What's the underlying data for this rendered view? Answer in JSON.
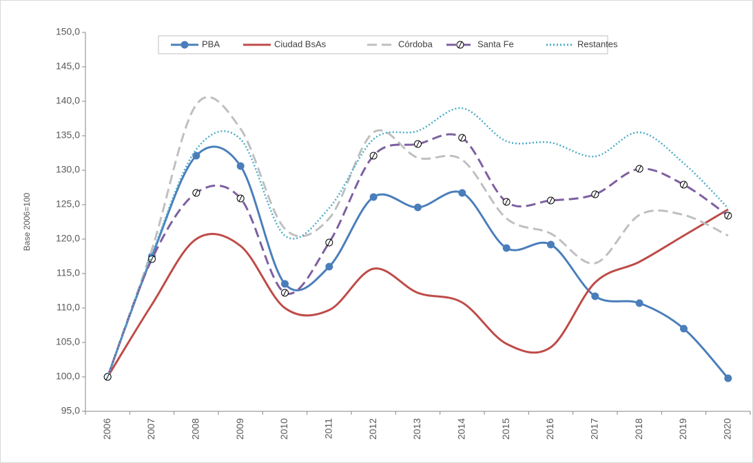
{
  "chart_data": {
    "type": "line",
    "y_label": "Base 2006=100",
    "categories": [
      "2006",
      "2007",
      "2008",
      "2009",
      "2010",
      "2011",
      "2012",
      "2013",
      "2014",
      "2015",
      "2016",
      "2017",
      "2018",
      "2019",
      "2020"
    ],
    "ylim": [
      95,
      150
    ],
    "yticks": [
      {
        "value": 95,
        "label": "95,0"
      },
      {
        "value": 100,
        "label": "100,0"
      },
      {
        "value": 105,
        "label": "105,0"
      },
      {
        "value": 110,
        "label": "110,0"
      },
      {
        "value": 115,
        "label": "115,0"
      },
      {
        "value": 120,
        "label": "120,0"
      },
      {
        "value": 125,
        "label": "125,0"
      },
      {
        "value": 130,
        "label": "130,0"
      },
      {
        "value": 135,
        "label": "135,0"
      },
      {
        "value": 140,
        "label": "140,0"
      },
      {
        "value": 145,
        "label": "145,0"
      },
      {
        "value": 150,
        "label": "150,0"
      }
    ],
    "smooth": true,
    "series": [
      {
        "name": "PBA",
        "color": "#4a7ebb",
        "line_style": "solid",
        "marker": "circle",
        "values": [
          100,
          117.5,
          132.1,
          130.6,
          113.5,
          116.0,
          126.1,
          124.6,
          126.7,
          118.7,
          119.2,
          111.7,
          110.7,
          107.0,
          99.8
        ]
      },
      {
        "name": "Ciudad BsAs",
        "color": "#be4b48",
        "line_style": "solid",
        "marker": null,
        "values": [
          100,
          110.5,
          120.0,
          119.0,
          110.0,
          109.7,
          115.7,
          112.2,
          110.8,
          104.8,
          104.3,
          113.7,
          116.7,
          120.5,
          124.3
        ]
      },
      {
        "name": "Córdoba",
        "color": "#bfbfbf",
        "line_style": "dashed",
        "marker": null,
        "values": [
          100,
          118.5,
          139.5,
          136.0,
          121.5,
          123.0,
          135.5,
          131.8,
          131.5,
          123.0,
          120.8,
          116.5,
          123.5,
          123.5,
          120.5
        ]
      },
      {
        "name": "Santa Fe",
        "color": "#7d5fa0",
        "line_style": "dashed",
        "marker": "open-circle",
        "values": [
          100,
          117.1,
          126.7,
          125.9,
          112.2,
          119.5,
          132.1,
          133.8,
          134.7,
          125.4,
          125.6,
          126.5,
          130.2,
          127.9,
          123.4
        ]
      },
      {
        "name": "Restantes",
        "color": "#4bacc6",
        "line_style": "dotted",
        "marker": null,
        "values": [
          100,
          117.8,
          133.0,
          134.5,
          120.5,
          124.5,
          134.5,
          135.7,
          139.0,
          134.2,
          134.0,
          132.0,
          135.5,
          131.0,
          124.5
        ]
      }
    ]
  }
}
